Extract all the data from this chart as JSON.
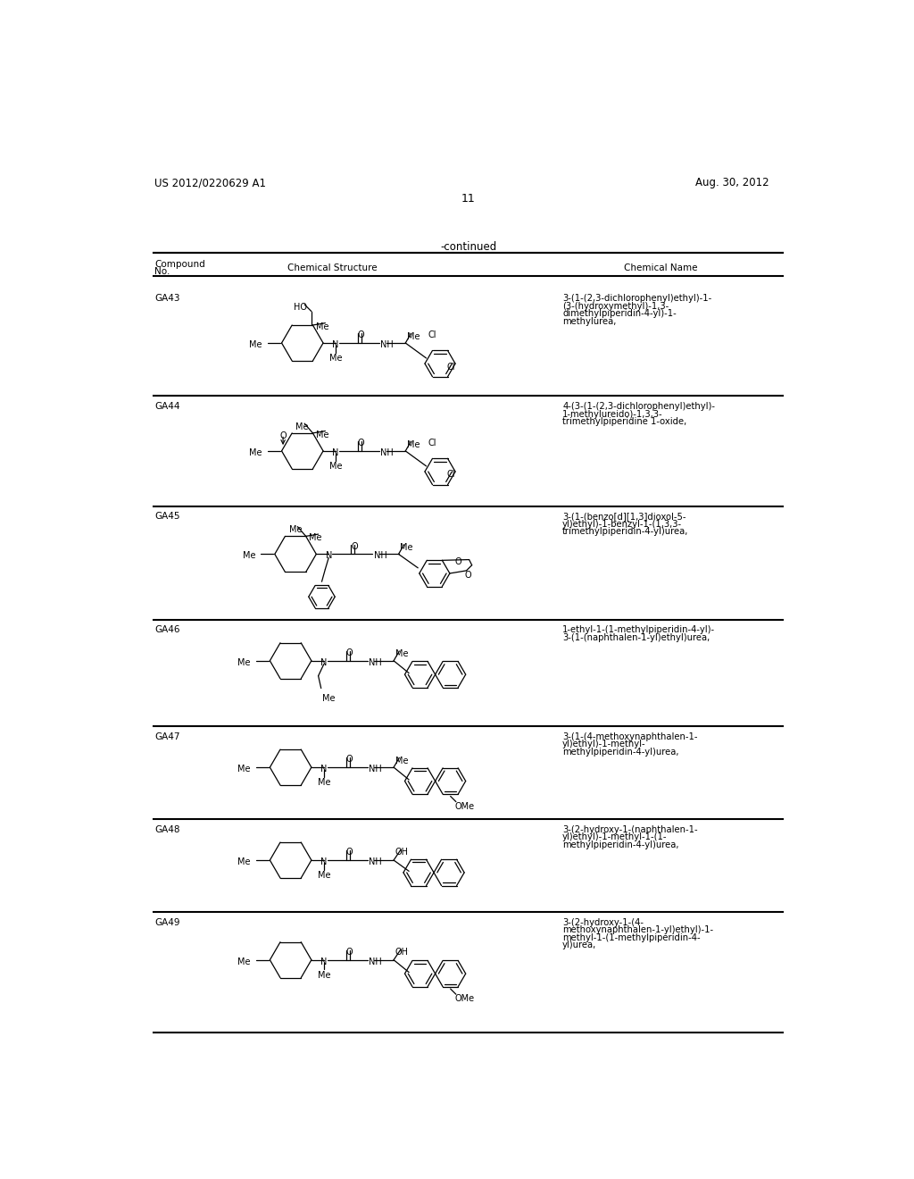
{
  "page_header_left": "US 2012/0220629 A1",
  "page_header_right": "Aug. 30, 2012",
  "page_number": "11",
  "continued_label": "-continued",
  "col_header_compound": "Compound\nNo.",
  "col_header_structure": "Chemical Structure",
  "col_header_name": "Chemical Name",
  "compounds": [
    {
      "id": "GA43",
      "name": "3-(1-(2,3-dichlorophenyl)ethyl)-1-\n(3-(hydroxymethyl)-1,3-\ndimethylpiperidin-4-yl)-1-\nmethylurea,"
    },
    {
      "id": "GA44",
      "name": "4-(3-(1-(2,3-dichlorophenyl)ethyl)-\n1-methylureido)-1,3,3-\ntrimethylpiperidine 1-oxide,"
    },
    {
      "id": "GA45",
      "name": "3-(1-(benzo[d][1,3]dioxol-5-\nyl)ethyl)-1-benzyl-1-(1,3,3-\ntrimethylpiperidin-4-yl)urea,"
    },
    {
      "id": "GA46",
      "name": "1-ethyl-1-(1-methylpiperidin-4-yl)-\n3-(1-(naphthalen-1-yl)ethyl)urea,"
    },
    {
      "id": "GA47",
      "name": "3-(1-(4-methoxynaphthalen-1-\nyl)ethyl)-1-methyl-\nmethylpiperidin-4-yl)urea,"
    },
    {
      "id": "GA48",
      "name": "3-(2-hydroxy-1-(naphthalen-1-\nyl)ethyl)-1-methyl-1-(1-\nmethylpiperidin-4-yl)urea,"
    },
    {
      "id": "GA49",
      "name": "3-(2-hydroxy-1-(4-\nmethoxynaphthalen-1-yl)ethyl)-1-\nmethyl-1-(1-methylpiperidin-4-\nyl)urea,"
    }
  ],
  "row_y_starts": [
    218,
    375,
    535,
    700,
    855,
    990,
    1125
  ],
  "row_y_ends": [
    370,
    530,
    695,
    850,
    985,
    1120,
    1295
  ],
  "bg_color": "#ffffff"
}
